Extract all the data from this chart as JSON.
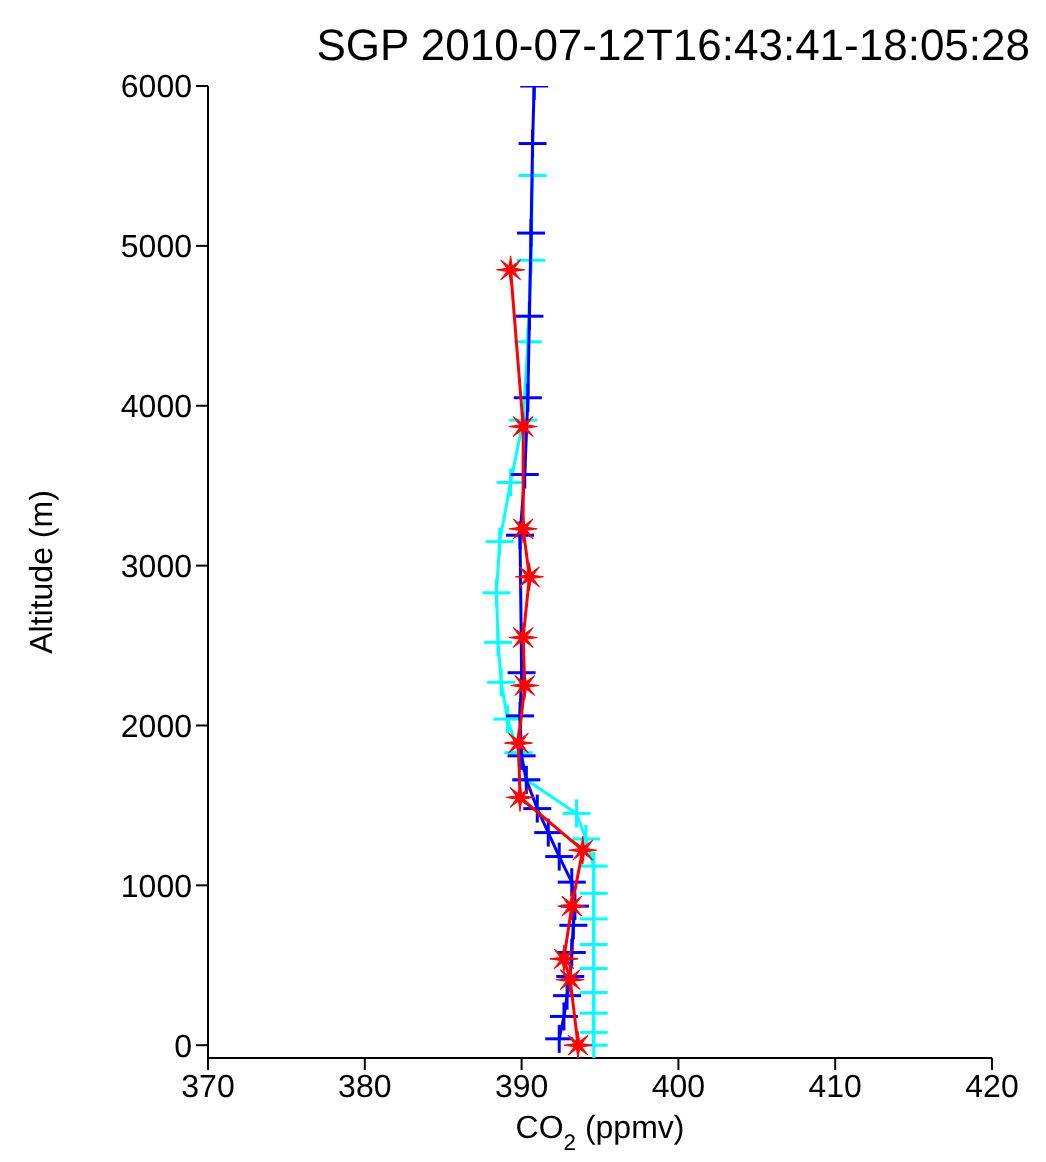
{
  "chart_data": {
    "type": "line",
    "title": "SGP 2010-07-12T16:43:41-18:05:28",
    "xlabel": "CO$_{2}$ (ppmv)",
    "ylabel": "Altitude (m)",
    "xlim": [
      370,
      420
    ],
    "xticks": [
      370,
      380,
      390,
      400,
      410,
      420
    ],
    "ylim": [
      -80,
      6000
    ],
    "yticks": [
      0,
      1000,
      2000,
      3000,
      4000,
      5000,
      6000
    ],
    "line_style": "solid",
    "series": [
      {
        "color": "#ff0000",
        "marker": "star",
        "x": [
          389.3,
          390.1,
          390.1,
          390.5,
          390.1,
          390.2,
          389.8,
          389.9,
          393.9,
          393.2,
          392.7,
          393.1,
          393.6
        ],
        "values": [
          4850,
          3870,
          3230,
          2930,
          2550,
          2250,
          1890,
          1550,
          1220,
          870,
          540,
          410,
          0
        ]
      },
      {
        "color": "#0000ff",
        "marker": "cross",
        "x": [
          390.8,
          390.7,
          390.6,
          390.5,
          390.4,
          390.2,
          389.9,
          390.0,
          389.9,
          390.0,
          390.3,
          391.0,
          391.7,
          392.4,
          393.2,
          393.4,
          393.3,
          393.2,
          393.1,
          392.9,
          392.7,
          392.4
        ],
        "values": [
          6000,
          5640,
          5080,
          4560,
          4050,
          3570,
          3190,
          2330,
          2060,
          1810,
          1660,
          1480,
          1330,
          1180,
          1020,
          870,
          750,
          580,
          430,
          310,
          180,
          40
        ]
      },
      {
        "color": "#00ffff",
        "marker": "cross",
        "x": [
          390.7,
          390.6,
          390.4,
          390.1,
          389.3,
          388.6,
          388.4,
          388.5,
          388.7,
          389.1,
          389.8,
          390.3,
          393.5,
          394.1,
          394.6,
          394.6,
          394.6,
          394.6,
          394.6,
          394.6,
          394.6,
          394.6,
          394.6
        ],
        "values": [
          5440,
          4910,
          4400,
          3910,
          3520,
          3150,
          2830,
          2520,
          2270,
          2040,
          1830,
          1660,
          1450,
          1290,
          1120,
          950,
          790,
          630,
          480,
          330,
          200,
          80,
          0
        ]
      }
    ]
  }
}
